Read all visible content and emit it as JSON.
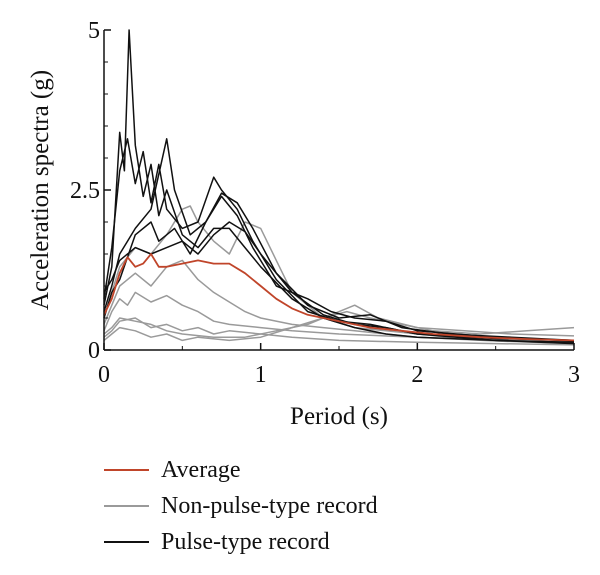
{
  "chart_data": {
    "type": "line",
    "xlabel": "Period (s)",
    "ylabel": "Acceleration spectra (g)",
    "xlim": [
      0,
      3
    ],
    "ylim": [
      0,
      5
    ],
    "x_ticks": [
      "0",
      "1",
      "2",
      "3"
    ],
    "y_ticks": [
      "0",
      "2.5",
      "5"
    ],
    "grid": false,
    "legend_position": "bottom",
    "legend": [
      {
        "label": "Average",
        "color": "#c0452a"
      },
      {
        "label": "Non-pulse-type record",
        "color": "#9a9a9a"
      },
      {
        "label": "Pulse-type record",
        "color": "#111111"
      }
    ],
    "series": [
      {
        "group": "pulse",
        "color": "#111111",
        "points": [
          [
            0,
            0.7
          ],
          [
            0.05,
            1.3
          ],
          [
            0.1,
            3.4
          ],
          [
            0.13,
            2.8
          ],
          [
            0.16,
            5.0
          ],
          [
            0.2,
            3.2
          ],
          [
            0.25,
            2.4
          ],
          [
            0.3,
            2.9
          ],
          [
            0.35,
            2.1
          ],
          [
            0.4,
            2.5
          ],
          [
            0.5,
            1.8
          ],
          [
            0.6,
            1.6
          ],
          [
            0.7,
            1.9
          ],
          [
            0.8,
            1.9
          ],
          [
            0.9,
            1.6
          ],
          [
            1.0,
            1.3
          ],
          [
            1.2,
            0.8
          ],
          [
            1.4,
            0.5
          ],
          [
            1.6,
            0.35
          ],
          [
            1.8,
            0.25
          ],
          [
            2.0,
            0.2
          ],
          [
            2.5,
            0.15
          ],
          [
            3.0,
            0.12
          ]
        ]
      },
      {
        "group": "pulse",
        "color": "#111111",
        "points": [
          [
            0,
            0.8
          ],
          [
            0.05,
            1.6
          ],
          [
            0.1,
            2.8
          ],
          [
            0.15,
            3.3
          ],
          [
            0.2,
            2.6
          ],
          [
            0.25,
            3.1
          ],
          [
            0.3,
            2.3
          ],
          [
            0.35,
            2.9
          ],
          [
            0.4,
            2.2
          ],
          [
            0.5,
            1.9
          ],
          [
            0.6,
            2.0
          ],
          [
            0.7,
            2.7
          ],
          [
            0.75,
            2.5
          ],
          [
            0.85,
            2.2
          ],
          [
            0.95,
            1.7
          ],
          [
            1.1,
            1.1
          ],
          [
            1.3,
            0.6
          ],
          [
            1.5,
            0.45
          ],
          [
            1.7,
            0.4
          ],
          [
            2.0,
            0.25
          ],
          [
            2.5,
            0.18
          ],
          [
            3.0,
            0.15
          ]
        ]
      },
      {
        "group": "pulse",
        "color": "#111111",
        "points": [
          [
            0,
            0.6
          ],
          [
            0.05,
            1.0
          ],
          [
            0.1,
            1.5
          ],
          [
            0.2,
            1.9
          ],
          [
            0.3,
            2.2
          ],
          [
            0.4,
            3.3
          ],
          [
            0.45,
            2.5
          ],
          [
            0.55,
            1.8
          ],
          [
            0.65,
            2.0
          ],
          [
            0.75,
            2.45
          ],
          [
            0.85,
            2.3
          ],
          [
            0.95,
            1.9
          ],
          [
            1.1,
            1.2
          ],
          [
            1.3,
            0.7
          ],
          [
            1.5,
            0.5
          ],
          [
            1.7,
            0.55
          ],
          [
            1.9,
            0.35
          ],
          [
            2.2,
            0.25
          ],
          [
            2.6,
            0.2
          ],
          [
            3.0,
            0.15
          ]
        ]
      },
      {
        "group": "pulse",
        "color": "#111111",
        "points": [
          [
            0,
            0.5
          ],
          [
            0.05,
            0.9
          ],
          [
            0.1,
            1.1
          ],
          [
            0.2,
            1.8
          ],
          [
            0.3,
            2.0
          ],
          [
            0.35,
            1.7
          ],
          [
            0.45,
            1.9
          ],
          [
            0.55,
            1.5
          ],
          [
            0.65,
            2.0
          ],
          [
            0.75,
            2.4
          ],
          [
            0.85,
            2.1
          ],
          [
            0.95,
            1.6
          ],
          [
            1.1,
            1.0
          ],
          [
            1.3,
            0.8
          ],
          [
            1.45,
            0.6
          ],
          [
            1.6,
            0.5
          ],
          [
            1.8,
            0.45
          ],
          [
            2.0,
            0.3
          ],
          [
            2.5,
            0.2
          ],
          [
            3.0,
            0.14
          ]
        ]
      },
      {
        "group": "pulse",
        "color": "#111111",
        "points": [
          [
            0,
            0.9
          ],
          [
            0.05,
            1.1
          ],
          [
            0.1,
            1.4
          ],
          [
            0.2,
            1.6
          ],
          [
            0.3,
            1.5
          ],
          [
            0.4,
            1.6
          ],
          [
            0.5,
            1.7
          ],
          [
            0.6,
            1.5
          ],
          [
            0.7,
            1.8
          ],
          [
            0.8,
            2.0
          ],
          [
            0.9,
            1.85
          ],
          [
            1.0,
            1.5
          ],
          [
            1.2,
            0.9
          ],
          [
            1.4,
            0.55
          ],
          [
            1.6,
            0.4
          ],
          [
            1.8,
            0.35
          ],
          [
            2.0,
            0.25
          ],
          [
            2.5,
            0.15
          ],
          [
            3.0,
            0.1
          ]
        ]
      },
      {
        "group": "nonpulse",
        "color": "#9a9a9a",
        "points": [
          [
            0,
            0.5
          ],
          [
            0.05,
            0.9
          ],
          [
            0.1,
            1.3
          ],
          [
            0.2,
            1.6
          ],
          [
            0.3,
            1.5
          ],
          [
            0.4,
            1.8
          ],
          [
            0.5,
            2.2
          ],
          [
            0.55,
            2.25
          ],
          [
            0.6,
            2.0
          ],
          [
            0.7,
            1.7
          ],
          [
            0.8,
            1.5
          ],
          [
            0.9,
            2.0
          ],
          [
            1.0,
            1.9
          ],
          [
            1.1,
            1.4
          ],
          [
            1.2,
            0.9
          ],
          [
            1.4,
            0.5
          ],
          [
            1.6,
            0.35
          ],
          [
            1.8,
            0.3
          ],
          [
            2.2,
            0.2
          ],
          [
            2.6,
            0.15
          ],
          [
            3.0,
            0.12
          ]
        ]
      },
      {
        "group": "nonpulse",
        "color": "#9a9a9a",
        "points": [
          [
            0,
            0.4
          ],
          [
            0.05,
            0.7
          ],
          [
            0.1,
            1.0
          ],
          [
            0.2,
            1.2
          ],
          [
            0.3,
            1.0
          ],
          [
            0.4,
            1.3
          ],
          [
            0.5,
            1.4
          ],
          [
            0.6,
            1.1
          ],
          [
            0.7,
            0.9
          ],
          [
            0.8,
            0.75
          ],
          [
            0.9,
            0.6
          ],
          [
            1.0,
            0.5
          ],
          [
            1.2,
            0.4
          ],
          [
            1.4,
            0.35
          ],
          [
            1.6,
            0.3
          ],
          [
            1.8,
            0.25
          ],
          [
            2.0,
            0.2
          ],
          [
            2.5,
            0.15
          ],
          [
            3.0,
            0.12
          ]
        ]
      },
      {
        "group": "nonpulse",
        "color": "#9a9a9a",
        "points": [
          [
            0,
            0.3
          ],
          [
            0.05,
            0.6
          ],
          [
            0.1,
            0.8
          ],
          [
            0.15,
            0.7
          ],
          [
            0.2,
            0.9
          ],
          [
            0.3,
            0.75
          ],
          [
            0.4,
            0.85
          ],
          [
            0.5,
            0.7
          ],
          [
            0.6,
            0.6
          ],
          [
            0.7,
            0.45
          ],
          [
            0.8,
            0.4
          ],
          [
            1.0,
            0.35
          ],
          [
            1.2,
            0.3
          ],
          [
            1.5,
            0.25
          ],
          [
            2.0,
            0.2
          ],
          [
            2.5,
            0.14
          ],
          [
            3.0,
            0.1
          ]
        ]
      },
      {
        "group": "nonpulse",
        "color": "#9a9a9a",
        "points": [
          [
            0,
            0.2
          ],
          [
            0.05,
            0.3
          ],
          [
            0.1,
            0.45
          ],
          [
            0.2,
            0.5
          ],
          [
            0.3,
            0.35
          ],
          [
            0.4,
            0.4
          ],
          [
            0.5,
            0.3
          ],
          [
            0.6,
            0.35
          ],
          [
            0.7,
            0.25
          ],
          [
            0.8,
            0.3
          ],
          [
            1.0,
            0.25
          ],
          [
            1.2,
            0.2
          ],
          [
            1.5,
            0.15
          ],
          [
            2.0,
            0.12
          ],
          [
            2.5,
            0.1
          ],
          [
            3.0,
            0.08
          ]
        ]
      },
      {
        "group": "nonpulse",
        "color": "#9a9a9a",
        "points": [
          [
            0,
            0.15
          ],
          [
            0.05,
            0.25
          ],
          [
            0.1,
            0.35
          ],
          [
            0.2,
            0.3
          ],
          [
            0.3,
            0.2
          ],
          [
            0.4,
            0.25
          ],
          [
            0.5,
            0.15
          ],
          [
            0.6,
            0.2
          ],
          [
            0.8,
            0.15
          ],
          [
            1.0,
            0.2
          ],
          [
            1.2,
            0.35
          ],
          [
            1.4,
            0.5
          ],
          [
            1.55,
            0.6
          ],
          [
            1.7,
            0.5
          ],
          [
            1.9,
            0.4
          ],
          [
            2.1,
            0.3
          ],
          [
            2.4,
            0.25
          ],
          [
            2.7,
            0.3
          ],
          [
            3.0,
            0.35
          ]
        ]
      },
      {
        "group": "nonpulse",
        "color": "#9a9a9a",
        "points": [
          [
            0,
            0.25
          ],
          [
            0.05,
            0.35
          ],
          [
            0.1,
            0.5
          ],
          [
            0.2,
            0.45
          ],
          [
            0.3,
            0.4
          ],
          [
            0.4,
            0.3
          ],
          [
            0.5,
            0.25
          ],
          [
            0.7,
            0.2
          ],
          [
            0.9,
            0.2
          ],
          [
            1.1,
            0.3
          ],
          [
            1.3,
            0.4
          ],
          [
            1.45,
            0.55
          ],
          [
            1.6,
            0.7
          ],
          [
            1.75,
            0.5
          ],
          [
            2.0,
            0.35
          ],
          [
            2.3,
            0.3
          ],
          [
            2.6,
            0.25
          ],
          [
            3.0,
            0.22
          ]
        ]
      },
      {
        "group": "average",
        "color": "#c0452a",
        "points": [
          [
            0,
            0.55
          ],
          [
            0.05,
            0.8
          ],
          [
            0.1,
            1.2
          ],
          [
            0.15,
            1.45
          ],
          [
            0.2,
            1.3
          ],
          [
            0.25,
            1.35
          ],
          [
            0.3,
            1.5
          ],
          [
            0.35,
            1.3
          ],
          [
            0.4,
            1.3
          ],
          [
            0.5,
            1.35
          ],
          [
            0.6,
            1.4
          ],
          [
            0.7,
            1.35
          ],
          [
            0.8,
            1.35
          ],
          [
            0.9,
            1.2
          ],
          [
            1.0,
            1.0
          ],
          [
            1.1,
            0.8
          ],
          [
            1.2,
            0.65
          ],
          [
            1.3,
            0.55
          ],
          [
            1.5,
            0.45
          ],
          [
            1.7,
            0.35
          ],
          [
            1.9,
            0.3
          ],
          [
            2.1,
            0.25
          ],
          [
            2.4,
            0.2
          ],
          [
            2.7,
            0.17
          ],
          [
            3.0,
            0.15
          ]
        ]
      }
    ]
  }
}
